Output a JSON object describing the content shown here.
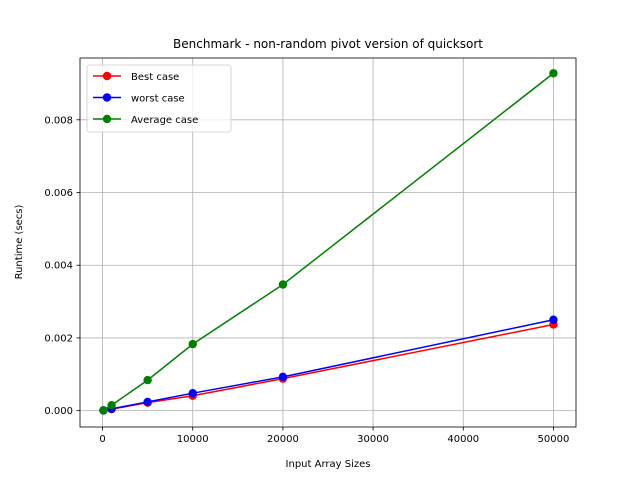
{
  "chart_data": {
    "type": "line",
    "title": "Benchmark - non-random pivot version of quicksort",
    "xlabel": "Input Array Sizes",
    "ylabel": "Runtime (secs)",
    "xlim": [
      -2500,
      52500
    ],
    "ylim": [
      -0.00045,
      0.0097
    ],
    "xticks": [
      0,
      10000,
      20000,
      30000,
      40000,
      50000
    ],
    "xtick_labels": [
      "0",
      "10000",
      "20000",
      "30000",
      "40000",
      "50000"
    ],
    "yticks": [
      0,
      0.002,
      0.004,
      0.006,
      0.008
    ],
    "ytick_labels": [
      "0.000",
      "0.002",
      "0.004",
      "0.006",
      "0.008"
    ],
    "grid": true,
    "legend_position": "top-left",
    "x": [
      100,
      1000,
      5000,
      10000,
      20000,
      50000
    ],
    "series": [
      {
        "name": "Best case",
        "color": "#ff0000",
        "values": [
          5e-06,
          4e-05,
          0.00022,
          0.00041,
          0.00088,
          0.00237
        ]
      },
      {
        "name": "worst case",
        "color": "#0000ff",
        "values": [
          6e-06,
          5e-05,
          0.00024,
          0.00048,
          0.00093,
          0.0025
        ]
      },
      {
        "name": "Average case",
        "color": "#008000",
        "values": [
          1e-05,
          0.00015,
          0.00084,
          0.00183,
          0.00347,
          0.00928
        ]
      }
    ]
  }
}
